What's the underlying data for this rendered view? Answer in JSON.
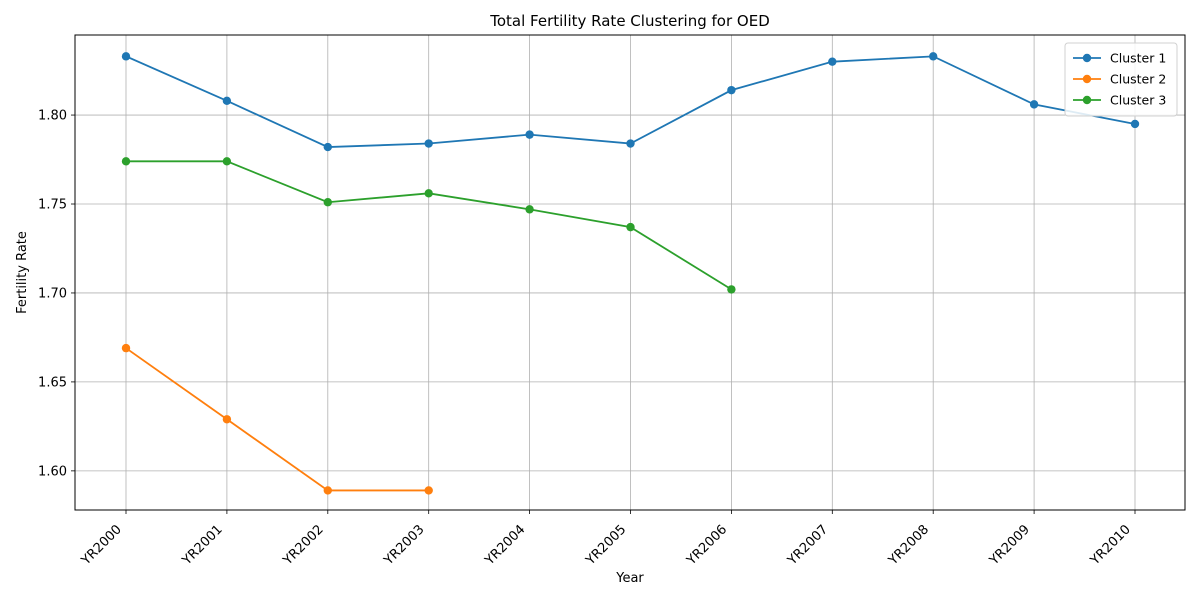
{
  "chart_data": {
    "type": "line",
    "title": "Total Fertility Rate Clustering for OED",
    "xlabel": "Year",
    "ylabel": "Fertility Rate",
    "categories": [
      "YR2000",
      "YR2001",
      "YR2002",
      "YR2003",
      "YR2004",
      "YR2005",
      "YR2006",
      "YR2007",
      "YR2008",
      "YR2009",
      "YR2010"
    ],
    "ylim": [
      1.578,
      1.845
    ],
    "yticks": [
      "1.60",
      "1.65",
      "1.70",
      "1.75",
      "1.80"
    ],
    "ytick_values": [
      1.6,
      1.65,
      1.7,
      1.75,
      1.8
    ],
    "grid": true,
    "legend_position": "top-right",
    "series": [
      {
        "name": "Cluster 1",
        "color": "#1f77b4",
        "values": [
          1.833,
          1.808,
          1.782,
          1.784,
          1.789,
          1.784,
          1.814,
          1.83,
          1.833,
          1.806,
          1.795
        ]
      },
      {
        "name": "Cluster 2",
        "color": "#ff7f0e",
        "values": [
          1.669,
          1.629,
          1.589,
          1.589,
          null,
          null,
          null,
          null,
          null,
          null,
          null
        ]
      },
      {
        "name": "Cluster 3",
        "color": "#2ca02c",
        "values": [
          1.774,
          1.774,
          1.751,
          1.756,
          1.747,
          1.737,
          1.702,
          null,
          null,
          null,
          null
        ]
      }
    ]
  }
}
